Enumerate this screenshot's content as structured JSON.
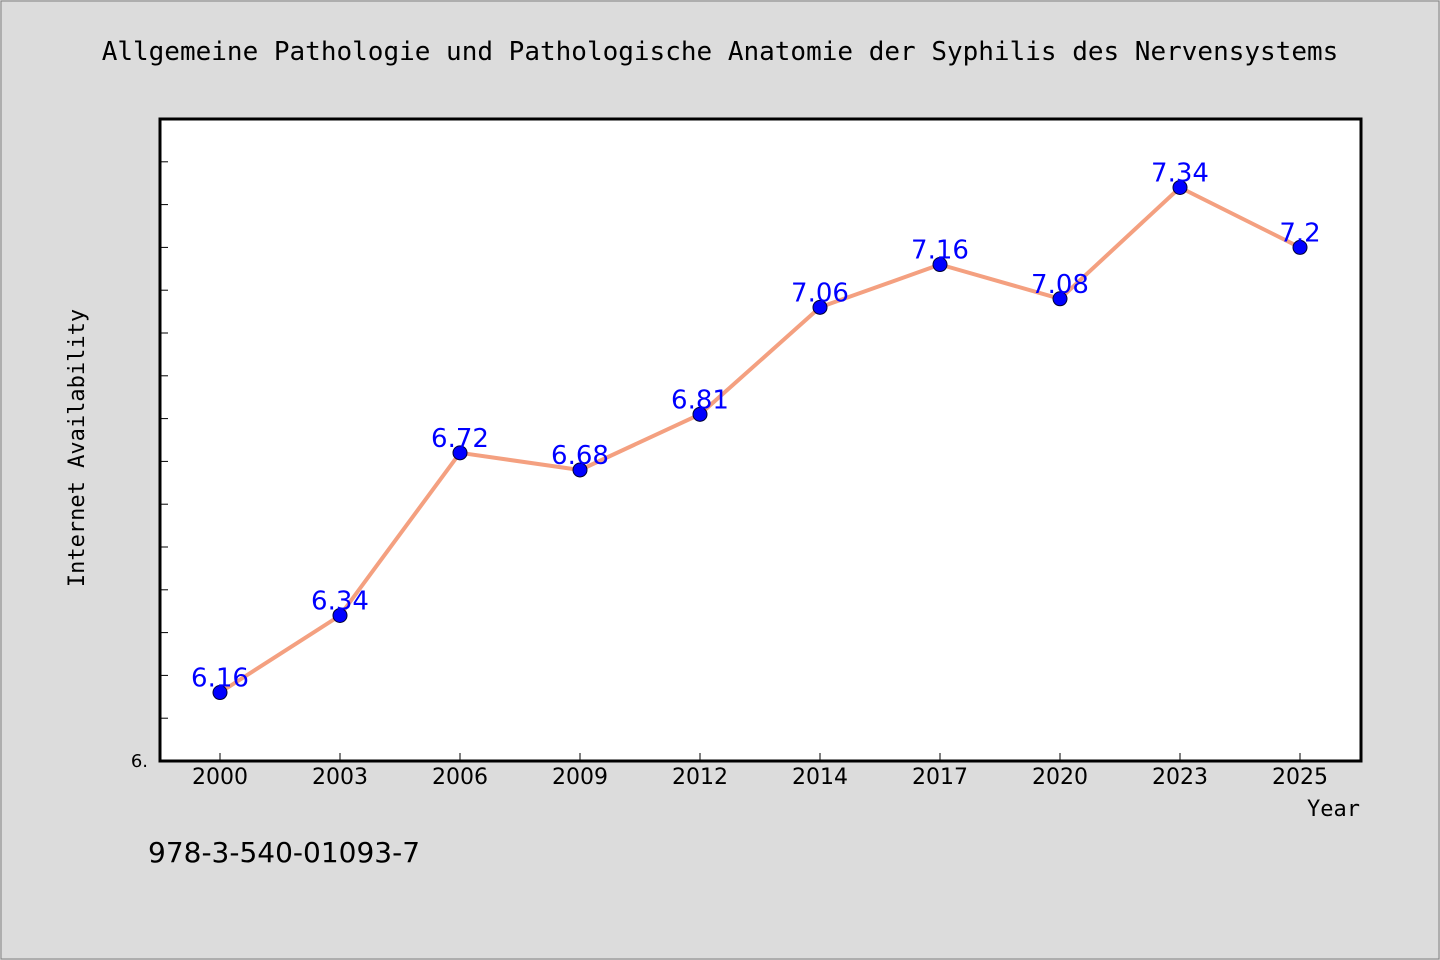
{
  "chart_data": {
    "type": "line",
    "title": "Allgemeine Pathologie und Pathologische Anatomie der Syphilis des Nervensystems",
    "xlabel": "Year",
    "ylabel": "Internet Availability",
    "categories": [
      "2000",
      "2003",
      "2006",
      "2009",
      "2012",
      "2014",
      "2017",
      "2020",
      "2023",
      "2025"
    ],
    "values": [
      6.16,
      6.34,
      6.72,
      6.68,
      6.81,
      7.06,
      7.16,
      7.08,
      7.34,
      7.2
    ],
    "data_labels": [
      "6.16",
      "6.34",
      "6.72",
      "6.68",
      "6.81",
      "7.06",
      "7.16",
      "7.08",
      "7.34",
      "7.2"
    ],
    "ylim": [
      6.0,
      7.5
    ],
    "y_tick_label": "6.",
    "grid": false,
    "legend": "none",
    "colors": {
      "line": "#f4a080",
      "marker": "#0000ff",
      "label": "#0000ff",
      "background": "#dcdcdc",
      "plot_background": "#ffffff"
    }
  },
  "footer": {
    "isbn": "978-3-540-01093-7"
  }
}
